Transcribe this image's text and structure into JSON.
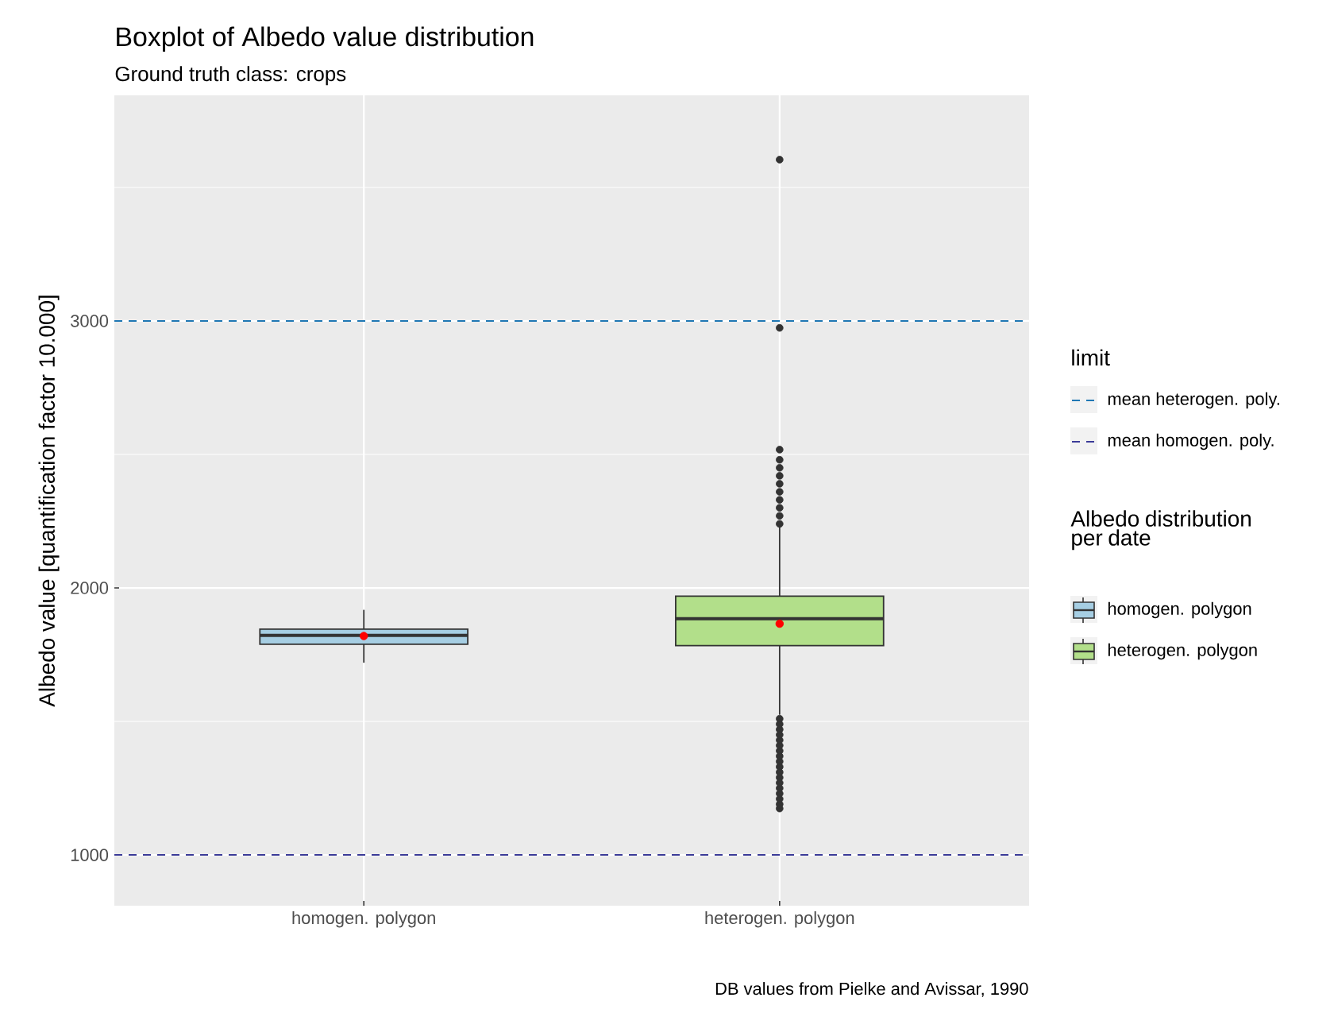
{
  "chart_data": {
    "type": "box",
    "title": "Boxplot of Albedo value distribution",
    "subtitle": "Ground truth class: crops",
    "ylabel": "Albedo value [quantification factor 10.000]",
    "legend_title": "Albedo distribution per date",
    "categories": [
      "homogen. polygon",
      "heterogen. polygon"
    ],
    "colors": [
      "#a6cee3",
      "#b2df8a"
    ],
    "boxes": [
      {
        "low": 1720,
        "q1": 1789,
        "median": 1822,
        "q3": 1846,
        "high": 1918,
        "mean": 1820
      },
      {
        "low": 1525,
        "q1": 1784,
        "median": 1885,
        "q3": 1969,
        "high": 2235,
        "mean": 1866,
        "outliers": [
          1174,
          1190,
          1210,
          1230,
          1250,
          1270,
          1290,
          1310,
          1330,
          1350,
          1370,
          1390,
          1410,
          1430,
          1450,
          1470,
          1490,
          1510,
          2240,
          2270,
          2300,
          2330,
          2360,
          2390,
          2420,
          2450,
          2480,
          2518,
          2974,
          3604
        ]
      }
    ],
    "ylim": [
      810,
      3845
    ],
    "yticks": [
      1000,
      2000,
      3000
    ],
    "grid": true,
    "legend": "right",
    "ref_lines": [
      {
        "axis": "y",
        "value": 3000,
        "label": "mean heterogen. poly.",
        "color": "#1f78b4",
        "line_style": "dashed"
      },
      {
        "axis": "y",
        "value": 1000,
        "label": "mean homogen. poly.",
        "color": "#3b3b98",
        "line_style": "dashed"
      }
    ],
    "annotations": [
      "limit",
      "DB values from Pielke and Avissar, 1990"
    ]
  }
}
